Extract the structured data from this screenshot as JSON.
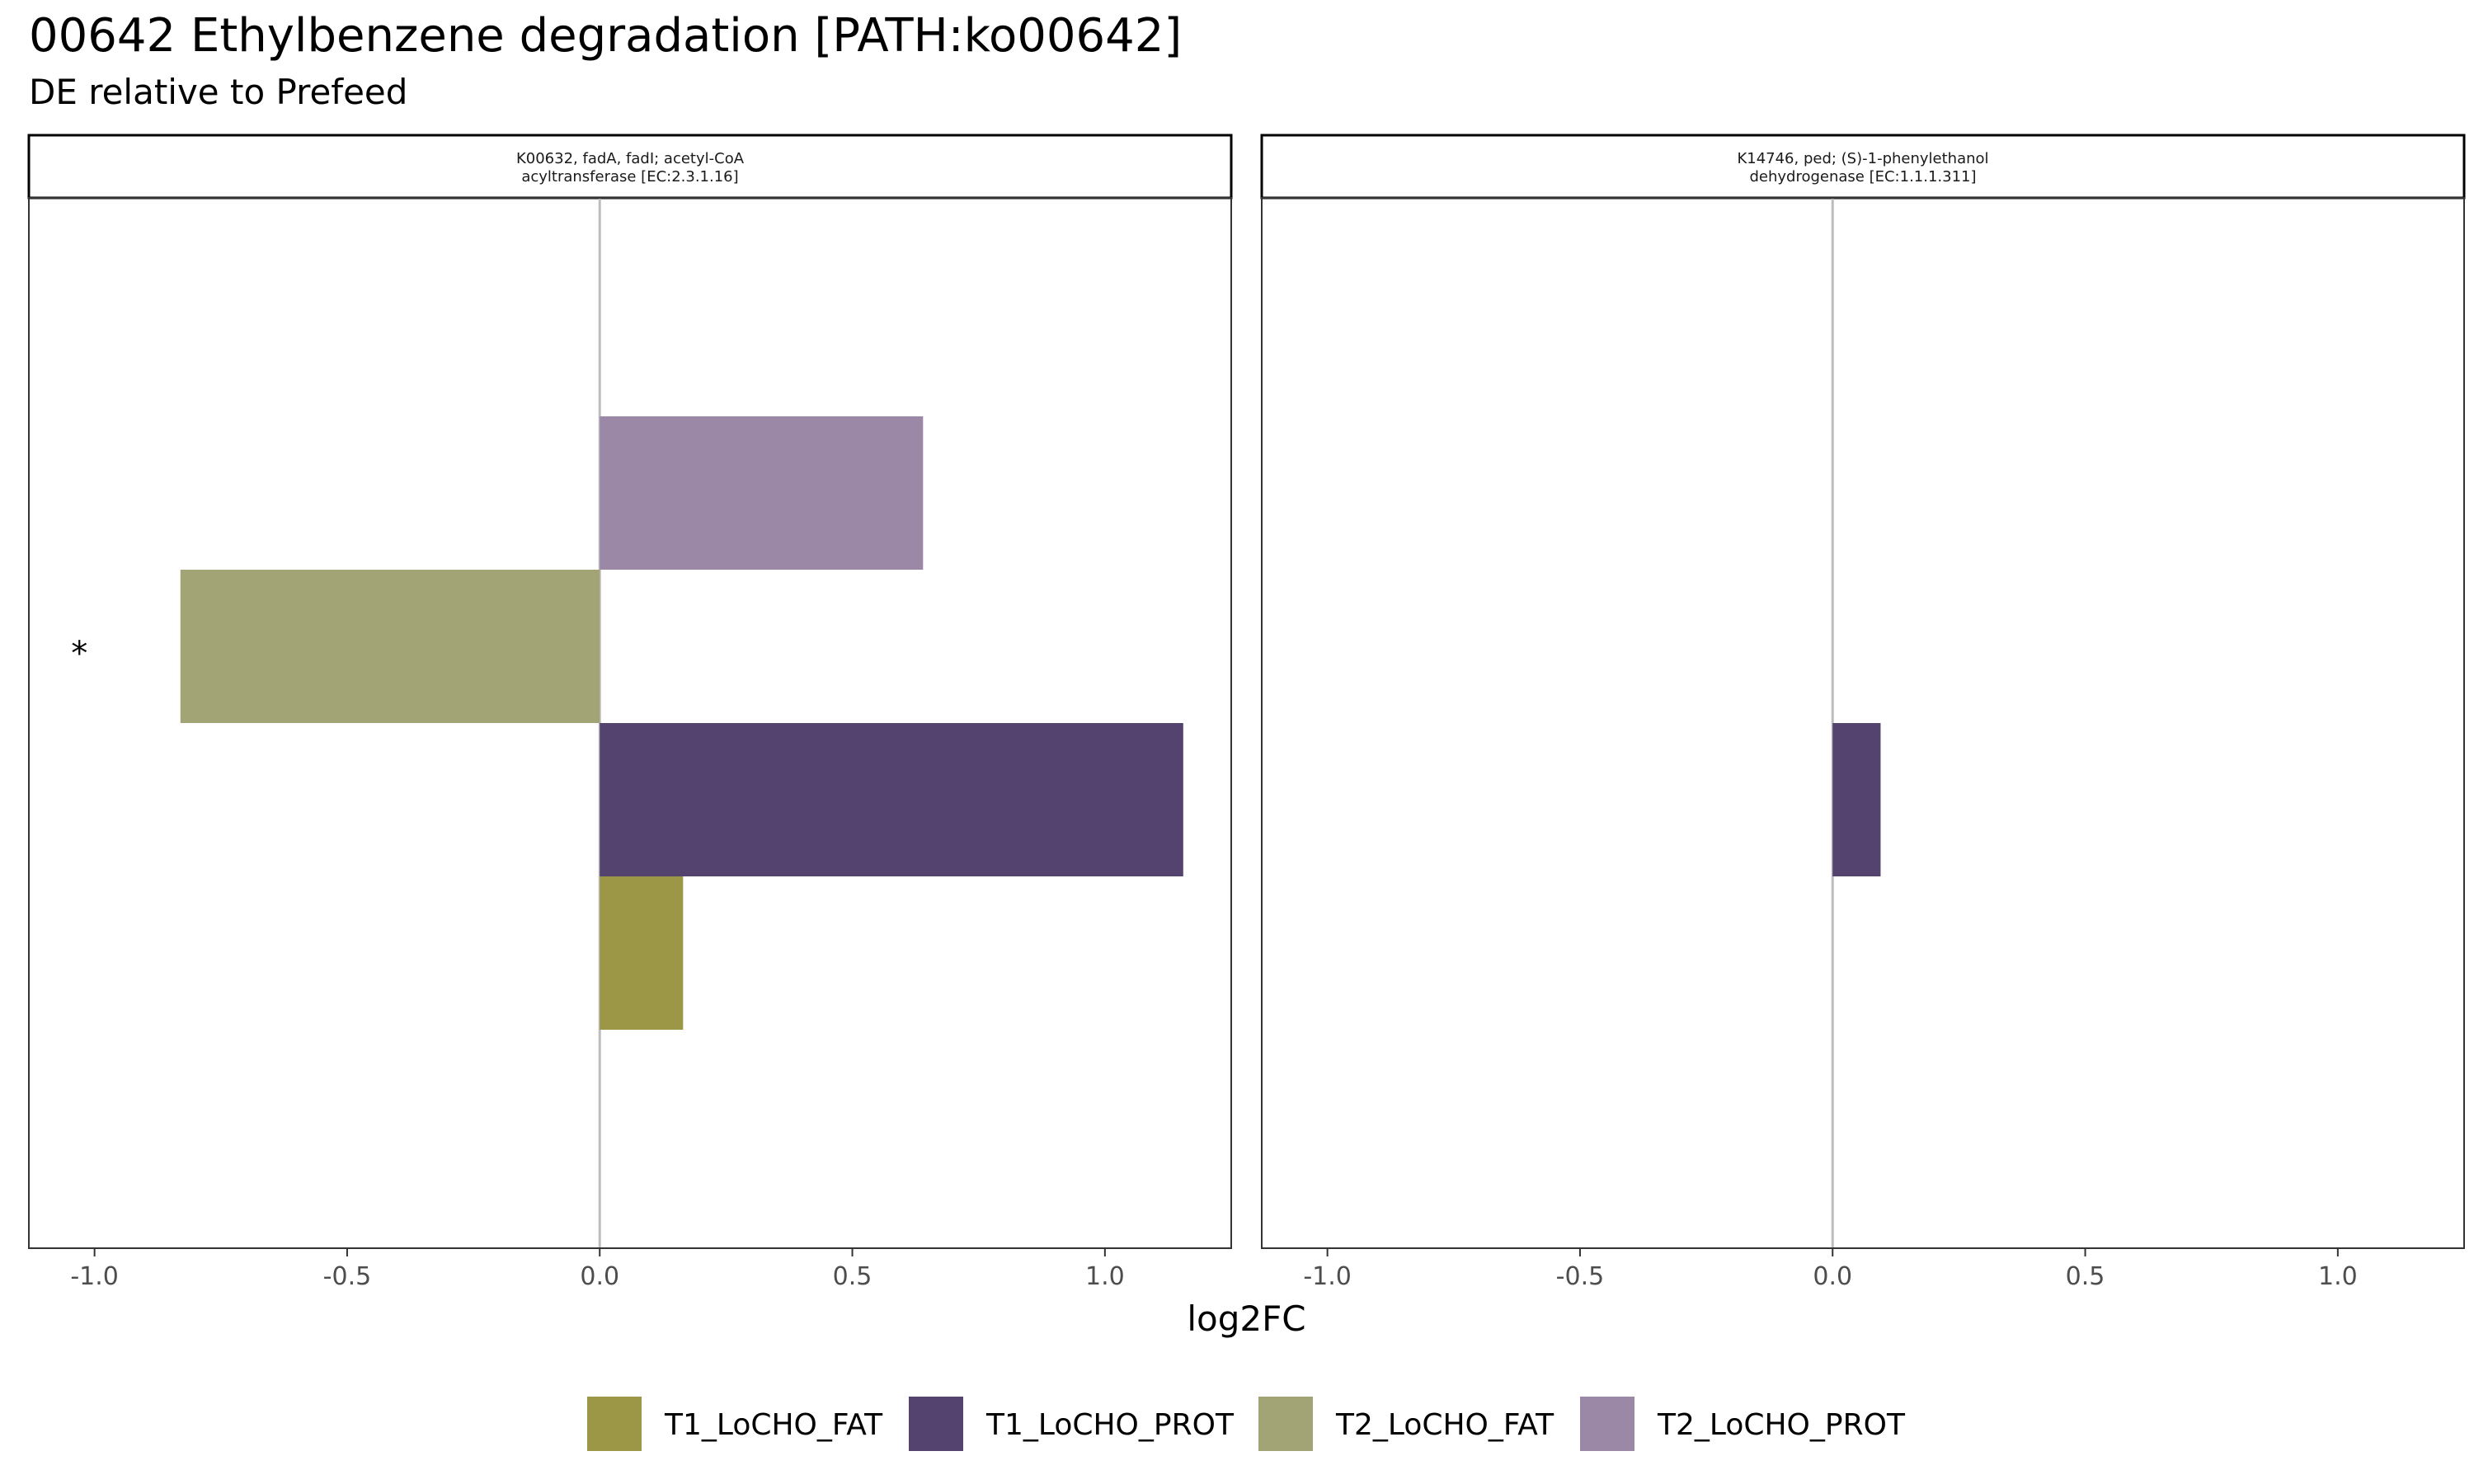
{
  "chart_data": {
    "type": "bar",
    "orientation": "horizontal",
    "title": "00642 Ethylbenzene degradation [PATH:ko00642]",
    "subtitle": "DE relative to Prefeed",
    "xlabel": "log2FC",
    "xlim": [
      -1.13,
      1.25
    ],
    "x_ticks": [
      -1.0,
      -0.5,
      0.0,
      0.5,
      1.0
    ],
    "x_tick_labels": [
      "-1.0",
      "-0.5",
      "0.0",
      "0.5",
      "1.0"
    ],
    "grid": false,
    "legend_position": "bottom",
    "legend": [
      {
        "name": "T1_LoCHO_FAT",
        "color": "#9c9647"
      },
      {
        "name": "T1_LoCHO_PROT",
        "color": "#53436e"
      },
      {
        "name": "T2_LoCHO_FAT",
        "color": "#a2a475"
      },
      {
        "name": "T2_LoCHO_PROT",
        "color": "#9b88a6"
      }
    ],
    "category_order": [
      "T1_LoCHO_FAT",
      "T1_LoCHO_PROT",
      "T2_LoCHO_FAT",
      "T2_LoCHO_PROT"
    ],
    "panels": [
      {
        "strip_lines": [
          "K00632, fadA, fadI; acetyl-CoA",
          "acyltransferase [EC:2.3.1.16]"
        ],
        "values": [
          {
            "series": "T1_LoCHO_FAT",
            "value": 0.165
          },
          {
            "series": "T1_LoCHO_PROT",
            "value": 1.155
          },
          {
            "series": "T2_LoCHO_FAT",
            "value": -0.83,
            "annotation": "*"
          },
          {
            "series": "T2_LoCHO_PROT",
            "value": 0.64
          }
        ]
      },
      {
        "strip_lines": [
          "K14746, ped; (S)-1-phenylethanol",
          "dehydrogenase [EC:1.1.1.311]"
        ],
        "values": [
          {
            "series": "T1_LoCHO_PROT",
            "value": 0.095
          }
        ]
      }
    ]
  }
}
